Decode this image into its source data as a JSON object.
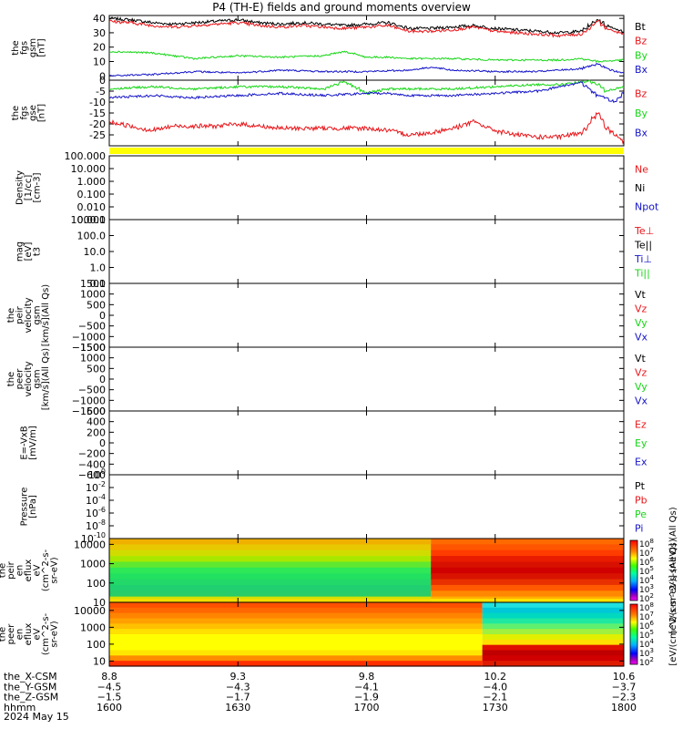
{
  "title": "P4 (TH-E) fields and ground moments overview",
  "colors": {
    "black": "#000000",
    "red": "#e8161a",
    "green": "#17d617",
    "blue": "#1414c8",
    "yellow": "#ffff00"
  },
  "chart_data": [
    {
      "panel": "fgs-gsm",
      "type": "line",
      "ylabel": [
        "the",
        "fgs",
        "gsm",
        "[nT]"
      ],
      "ylim": [
        -3,
        42
      ],
      "yticks": [
        0,
        10,
        20,
        30,
        40
      ],
      "legend": [
        {
          "label": "Bt",
          "color": "black"
        },
        {
          "label": "Bz",
          "color": "red"
        },
        {
          "label": "By",
          "color": "green"
        },
        {
          "label": "Bx",
          "color": "blue"
        }
      ],
      "series": [
        {
          "name": "Bt",
          "color": "black",
          "x": [
            1600,
            1605,
            1610,
            1615,
            1620,
            1625,
            1630,
            1635,
            1640,
            1645,
            1650,
            1655,
            1700,
            1705,
            1710,
            1715,
            1720,
            1725,
            1730,
            1735,
            1740,
            1745,
            1750,
            1752,
            1754,
            1756,
            1800
          ],
          "y": [
            40,
            39,
            37,
            36,
            37,
            38,
            39,
            37,
            36,
            37,
            36,
            35,
            36,
            37,
            33,
            33,
            34,
            35,
            33,
            32,
            31,
            30,
            31,
            35,
            39,
            35,
            31
          ],
          "noise": 1.0
        },
        {
          "name": "Bz",
          "color": "red",
          "x": [
            1600,
            1605,
            1610,
            1615,
            1620,
            1625,
            1630,
            1635,
            1640,
            1645,
            1650,
            1655,
            1700,
            1705,
            1710,
            1715,
            1720,
            1725,
            1730,
            1735,
            1740,
            1745,
            1750,
            1752,
            1754,
            1756,
            1800
          ],
          "y": [
            38,
            37,
            35,
            34,
            35,
            36,
            37,
            35,
            34,
            35,
            34,
            33,
            34,
            35,
            31,
            31,
            32,
            34,
            31,
            30,
            29,
            28,
            29,
            33,
            38,
            33,
            29
          ],
          "noise": 1.0
        },
        {
          "name": "By",
          "color": "green",
          "x": [
            1600,
            1610,
            1620,
            1630,
            1640,
            1650,
            1655,
            1700,
            1705,
            1710,
            1720,
            1730,
            1740,
            1745,
            1750,
            1754,
            1800
          ],
          "y": [
            17,
            16,
            12,
            14,
            13,
            14,
            17,
            13,
            13,
            12,
            12,
            11,
            11,
            11,
            12,
            10,
            11
          ],
          "noise": 0.6
        },
        {
          "name": "Bx",
          "color": "blue",
          "x": [
            1600,
            1610,
            1620,
            1630,
            1640,
            1650,
            1700,
            1710,
            1715,
            1720,
            1730,
            1740,
            1745,
            1750,
            1754,
            1758,
            1800
          ],
          "y": [
            0,
            1,
            3,
            2,
            4,
            3,
            3,
            4,
            6,
            4,
            3,
            3,
            4,
            5,
            8,
            3,
            2
          ],
          "noise": 0.6
        }
      ]
    },
    {
      "panel": "fgs-gse",
      "type": "line",
      "ylabel": [
        "the",
        "fgs",
        "gse",
        "[nT]"
      ],
      "ylim": [
        -30,
        0
      ],
      "yticks": [
        -25,
        -20,
        -15,
        -10,
        -5,
        0
      ],
      "legend": [
        {
          "label": "Bz",
          "color": "red"
        },
        {
          "label": "By",
          "color": "green"
        },
        {
          "label": "Bx",
          "color": "blue"
        }
      ],
      "series": [
        {
          "name": "Bz",
          "color": "red",
          "x": [
            1600,
            1605,
            1610,
            1615,
            1620,
            1625,
            1630,
            1640,
            1650,
            1700,
            1705,
            1710,
            1715,
            1720,
            1725,
            1730,
            1735,
            1740,
            1745,
            1750,
            1752,
            1754,
            1756,
            1800
          ],
          "y": [
            -19,
            -21,
            -23,
            -21,
            -21,
            -21,
            -20,
            -22,
            -22,
            -22,
            -23,
            -25,
            -24,
            -22,
            -19,
            -23,
            -25,
            -26,
            -26,
            -24,
            -20,
            -15,
            -22,
            -28
          ],
          "noise": 1.0
        },
        {
          "name": "By",
          "color": "green",
          "x": [
            1600,
            1610,
            1620,
            1630,
            1640,
            1650,
            1655,
            1700,
            1705,
            1710,
            1720,
            1730,
            1740,
            1745,
            1750,
            1752,
            1754,
            1756,
            1800
          ],
          "y": [
            -4,
            -3,
            -4,
            -3,
            -3,
            -4,
            -0.5,
            -6,
            -4,
            -4,
            -4,
            -3,
            -2,
            -2,
            -1,
            -0.5,
            -2,
            -5,
            -3
          ],
          "noise": 0.5
        },
        {
          "name": "Bx",
          "color": "blue",
          "x": [
            1600,
            1610,
            1620,
            1630,
            1640,
            1650,
            1700,
            1705,
            1710,
            1720,
            1730,
            1740,
            1745,
            1750,
            1754,
            1758,
            1800
          ],
          "y": [
            -8,
            -7,
            -8,
            -7,
            -6,
            -7,
            -6,
            -6,
            -7,
            -7,
            -6,
            -5,
            -3,
            -1,
            -7,
            -10,
            -6
          ],
          "noise": 0.5
        }
      ]
    },
    {
      "panel": "density",
      "type": "line",
      "ylabel": [
        "Density",
        "[1/cc]",
        "[cm-3]"
      ],
      "yscale": "log",
      "ylim": [
        0.001,
        100
      ],
      "yticks": [
        "100.000",
        "10.000",
        "1.000",
        "0.100",
        "0.010",
        "0.001"
      ],
      "legend": [
        {
          "label": "Ne",
          "color": "red"
        },
        {
          "label": "Ni",
          "color": "black"
        },
        {
          "label": "Npot",
          "color": "blue"
        }
      ]
    },
    {
      "panel": "temperature",
      "type": "line",
      "ylabel": [
        "mag",
        "[eV]",
        "t3"
      ],
      "yscale": "log",
      "ylim": [
        0.1,
        1000
      ],
      "yticks": [
        "1000.0",
        "100.0",
        "10.0",
        "1.0",
        "0.1"
      ],
      "legend": [
        {
          "label": "Te⊥",
          "color": "red"
        },
        {
          "label": "Te||",
          "color": "black"
        },
        {
          "label": "Ti⊥",
          "color": "blue"
        },
        {
          "label": "Ti||",
          "color": "green"
        }
      ]
    },
    {
      "panel": "peir-velocity",
      "type": "line",
      "ylabel": [
        "the",
        "peir",
        "velocity",
        "gsm",
        "[km/s](All Qs)"
      ],
      "ylim": [
        -1500,
        1500
      ],
      "yticks": [
        "1500",
        "1000",
        "500",
        "0",
        "−500",
        "−1000",
        "−1500"
      ],
      "legend": [
        {
          "label": "Vt",
          "color": "black"
        },
        {
          "label": "Vz",
          "color": "red"
        },
        {
          "label": "Vy",
          "color": "green"
        },
        {
          "label": "Vx",
          "color": "blue"
        }
      ]
    },
    {
      "panel": "peer-velocity",
      "type": "line",
      "ylabel": [
        "the",
        "peer",
        "velocity",
        "gsm",
        "[km/s](All Qs)"
      ],
      "ylim": [
        -1500,
        1500
      ],
      "yticks": [
        "1500",
        "1000",
        "500",
        "0",
        "−500",
        "−1000",
        "−1500"
      ],
      "legend": [
        {
          "label": "Vt",
          "color": "black"
        },
        {
          "label": "Vz",
          "color": "red"
        },
        {
          "label": "Vy",
          "color": "green"
        },
        {
          "label": "Vx",
          "color": "blue"
        }
      ]
    },
    {
      "panel": "e-field",
      "type": "line",
      "ylabel": [
        "E=-VxB",
        "[mV/m]"
      ],
      "ylim": [
        -600,
        600
      ],
      "yticks": [
        "600",
        "400",
        "200",
        "0",
        "−200",
        "−400",
        "−600"
      ],
      "legend": [
        {
          "label": "Ez",
          "color": "red"
        },
        {
          "label": "Ey",
          "color": "green"
        },
        {
          "label": "Ex",
          "color": "blue"
        }
      ]
    },
    {
      "panel": "pressure",
      "type": "line",
      "ylabel": [
        "Pressure",
        "[nPa]"
      ],
      "yscale": "log",
      "ylim": [
        1e-10,
        1
      ],
      "yticks": [
        "10^0",
        "10^-2",
        "10^-4",
        "10^-6",
        "10^-8",
        "10^-10"
      ],
      "legend": [
        {
          "label": "Pt",
          "color": "black"
        },
        {
          "label": "Pb",
          "color": "red"
        },
        {
          "label": "Pe",
          "color": "green"
        },
        {
          "label": "Pi",
          "color": "blue"
        }
      ]
    },
    {
      "panel": "peir-eflux",
      "type": "heatmap",
      "ylabel": [
        "the",
        "peir",
        "en",
        "eflux",
        "eV",
        "(cm^2-s-",
        "sr-eV)"
      ],
      "yscale": "log",
      "ylim": [
        10,
        20000
      ],
      "yticks": [
        "10000",
        "1000",
        "100",
        "10"
      ],
      "colorbar_label": "[eV/(cm^2-s-sr-eV)] (All Qs)",
      "colorbar_ticks": [
        "10^8",
        "10^7",
        "10^6",
        "10^5",
        "10^4",
        "10^3",
        "10^2"
      ],
      "blocks": [
        {
          "x_from": 1600,
          "x_to": 1715,
          "levels": [
            {
              "from": 2,
              "to": 1,
              "color": "#e8b400"
            },
            {
              "from": 1,
              "to": 0,
              "color": "#e8b400"
            }
          ]
        }
      ]
    },
    {
      "panel": "peer-eflux",
      "type": "heatmap",
      "ylabel": [
        "the",
        "peer",
        "en",
        "eflux",
        "eV",
        "(cm^2-s-",
        "sr-eV)"
      ],
      "yscale": "log",
      "ylim": [
        5,
        30000
      ],
      "yticks": [
        "10000",
        "1000",
        "100",
        "10"
      ],
      "colorbar_label": "[eV/(cm^2-s-sr-eV)] (All Qs)",
      "colorbar_ticks": [
        "10^8",
        "10^7",
        "10^6",
        "10^5",
        "10^4",
        "10^3",
        "10^2"
      ]
    }
  ],
  "time_axis": {
    "x": [
      1600,
      1630,
      1700,
      1730,
      1800
    ],
    "rows": [
      {
        "label": "the_X-CSM",
        "values": [
          "8.8",
          "9.3",
          "9.8",
          "10.2",
          "10.6"
        ]
      },
      {
        "label": "the_Y-GSM",
        "values": [
          "−4.5",
          "−4.3",
          "−4.1",
          "−4.0",
          "−3.7"
        ]
      },
      {
        "label": "the_Z-GSM",
        "values": [
          "−1.5",
          "−1.7",
          "−1.9",
          "−2.1",
          "−2.3"
        ]
      },
      {
        "label": "hhmm",
        "values": [
          "1600",
          "1630",
          "1700",
          "1730",
          "1800"
        ]
      }
    ],
    "date": "2024 May 15"
  }
}
